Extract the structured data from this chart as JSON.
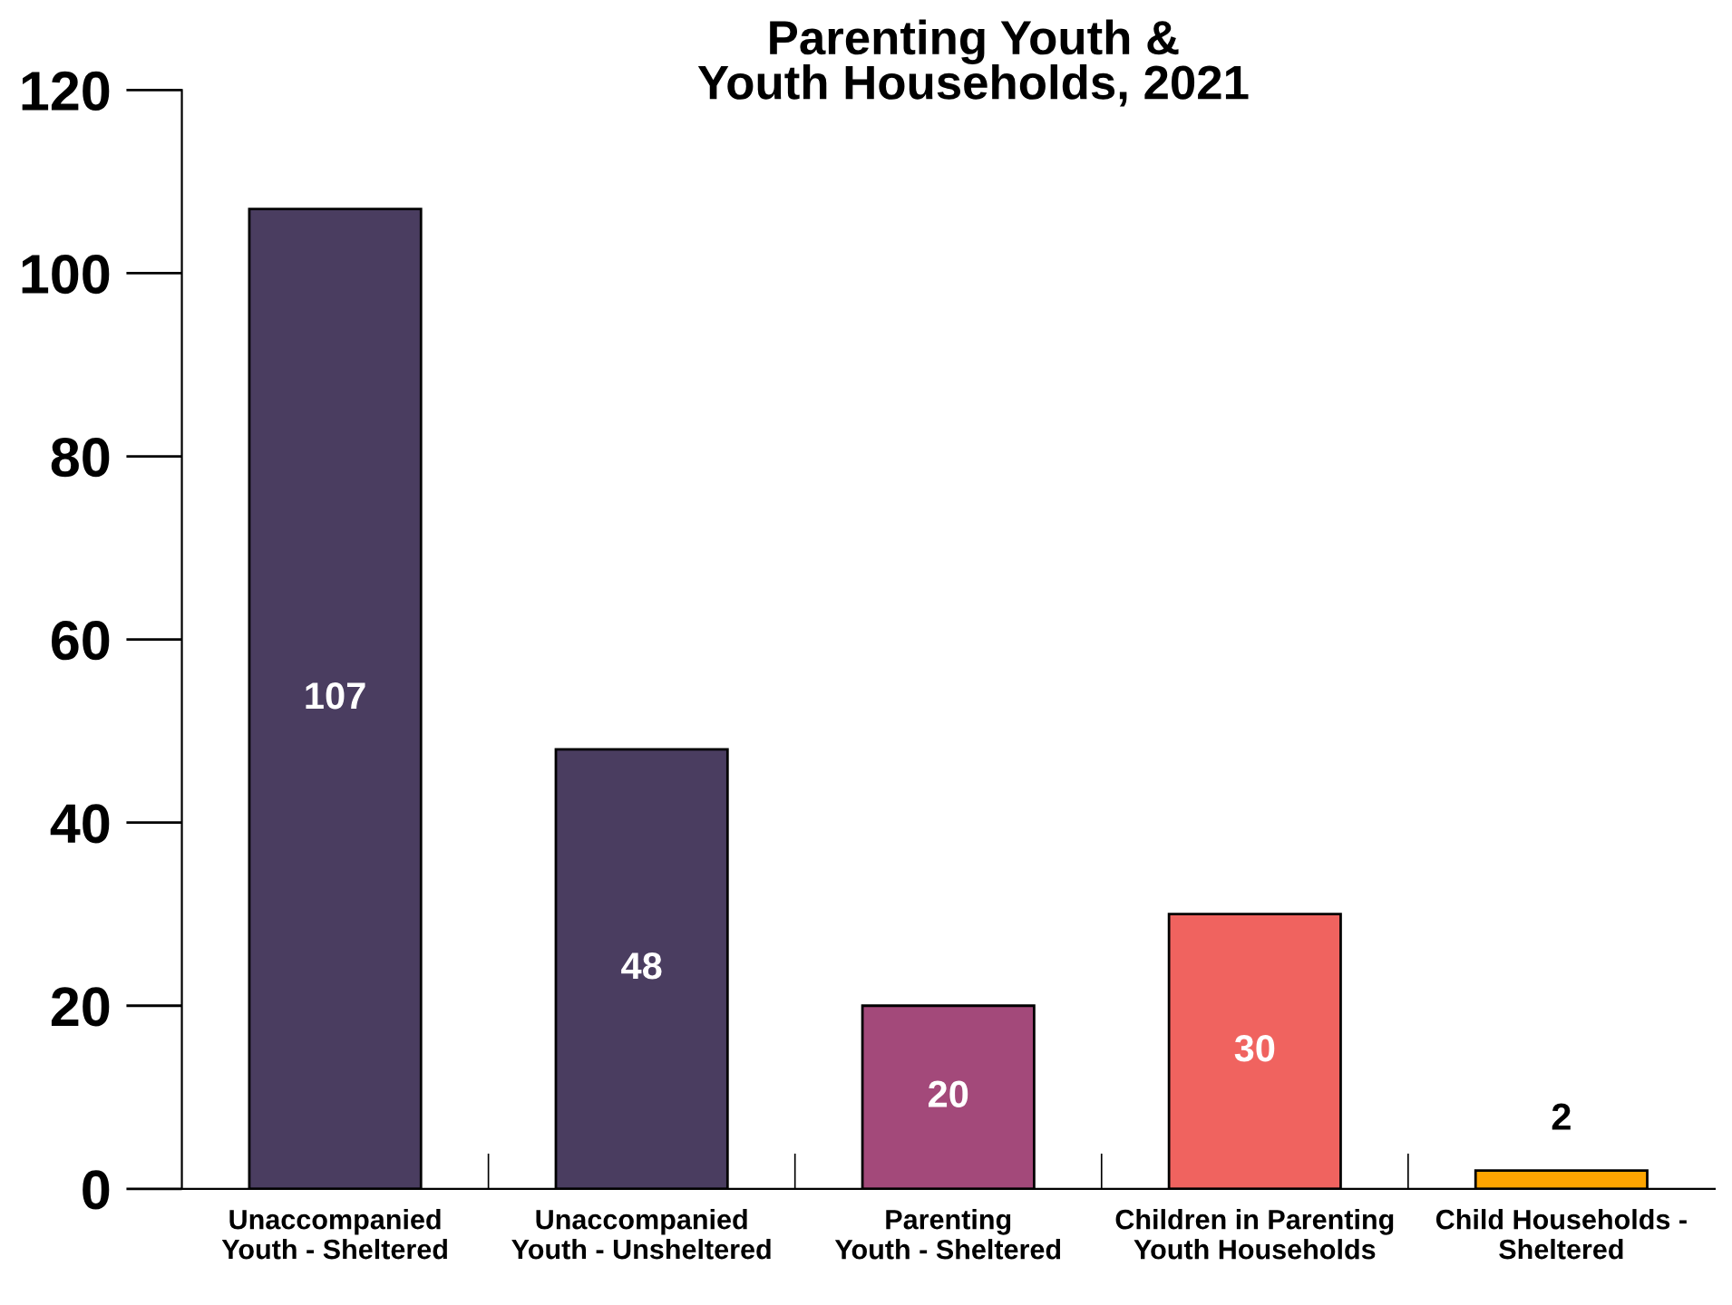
{
  "chart_data": {
    "type": "bar",
    "title": "Parenting Youth &\nYouth Households, 2021",
    "categories": [
      "Unaccompanied\nYouth - Sheltered",
      "Unaccompanied\nYouth - Unsheltered",
      "Parenting\nYouth - Sheltered",
      "Children in Parenting\nYouth Households",
      "Child Households -\nSheltered"
    ],
    "values": [
      107,
      48,
      20,
      30,
      2
    ],
    "colors": [
      "#4a3d60",
      "#4a3d60",
      "#a3497a",
      "#f0635f",
      "#ffa500"
    ],
    "ylim": [
      0,
      120
    ],
    "yticks": [
      0,
      20,
      40,
      60,
      80,
      100,
      120
    ],
    "data_labels": true,
    "grid": false
  }
}
